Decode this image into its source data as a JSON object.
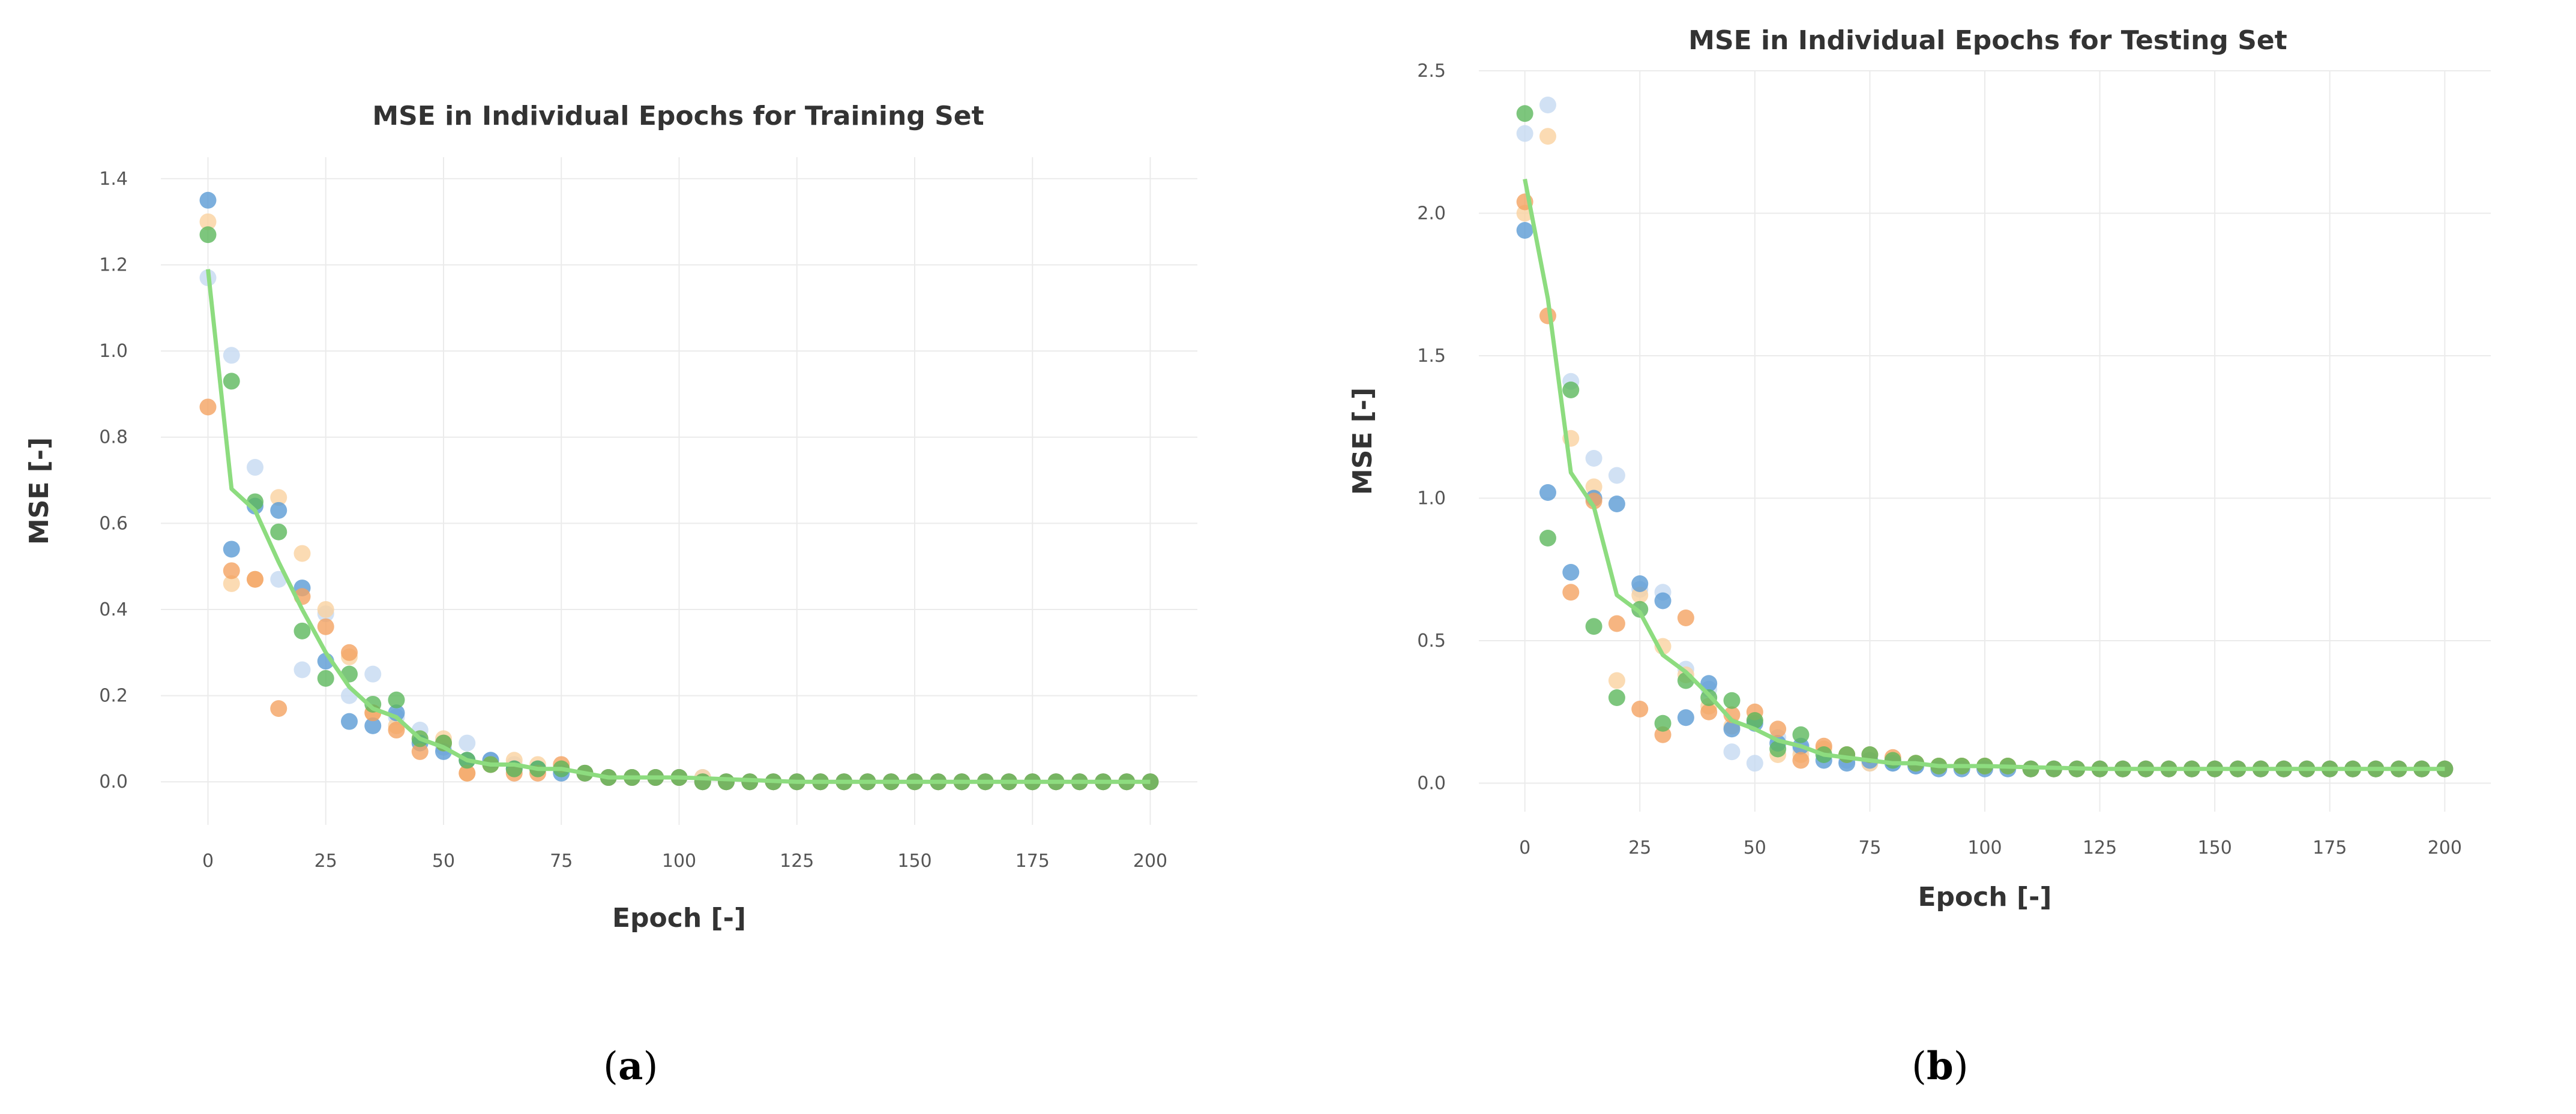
{
  "captions": [
    "a",
    "b"
  ],
  "colors": {
    "blue": "#5b9bd5",
    "light_blue": "#c6d9f1",
    "orange": "#f4a261",
    "light_orange": "#fad2a0",
    "green": "#5cb85c",
    "line": "#8ddc7f"
  },
  "chart_data": [
    {
      "type": "scatter",
      "title": "MSE in Individual Epochs for Training Set",
      "xlabel": "Epoch [-]",
      "ylabel": "MSE [-]",
      "xlim": [
        -10,
        210
      ],
      "ylim": [
        -0.1,
        1.45
      ],
      "xticks": [
        0,
        25,
        50,
        75,
        100,
        125,
        150,
        175,
        200
      ],
      "yticks": [
        0.0,
        0.2,
        0.4,
        0.6,
        0.8,
        1.0,
        1.2,
        1.4
      ],
      "grid": true,
      "x": [
        0,
        5,
        10,
        15,
        20,
        25,
        30,
        35,
        40,
        45,
        50,
        55,
        60,
        65,
        70,
        75,
        80,
        85,
        90,
        95,
        100,
        105,
        110,
        115,
        120,
        125,
        130,
        135,
        140,
        145,
        150,
        155,
        160,
        165,
        170,
        175,
        180,
        185,
        190,
        195,
        200
      ],
      "series": [
        {
          "color_key": "light_blue",
          "values": [
            1.17,
            0.99,
            0.73,
            0.47,
            0.26,
            0.39,
            0.2,
            0.25,
            0.15,
            0.12,
            0.08,
            0.09,
            0.05,
            0.04,
            0.03,
            0.03,
            0.02,
            0.01,
            0.01,
            0.01,
            0.01,
            0.01,
            0.0,
            0.0,
            0.0,
            0.0,
            0.0,
            0.0,
            0.0,
            0.0,
            0.0,
            0.0,
            0.0,
            0.0,
            0.0,
            0.0,
            0.0,
            0.0,
            0.0,
            0.0,
            0.0
          ]
        },
        {
          "color_key": "light_orange",
          "values": [
            1.3,
            0.46,
            0.47,
            0.66,
            0.53,
            0.4,
            0.29,
            0.16,
            0.13,
            0.1,
            0.1,
            0.02,
            0.04,
            0.05,
            0.04,
            0.03,
            0.02,
            0.01,
            0.01,
            0.01,
            0.01,
            0.01,
            0.0,
            0.0,
            0.0,
            0.0,
            0.0,
            0.0,
            0.0,
            0.0,
            0.0,
            0.0,
            0.0,
            0.0,
            0.0,
            0.0,
            0.0,
            0.0,
            0.0,
            0.0,
            0.0
          ]
        },
        {
          "color_key": "blue",
          "values": [
            1.35,
            0.54,
            0.64,
            0.63,
            0.45,
            0.28,
            0.14,
            0.13,
            0.16,
            0.09,
            0.07,
            0.05,
            0.05,
            0.03,
            0.03,
            0.02,
            0.02,
            0.01,
            0.01,
            0.01,
            0.01,
            0.0,
            0.0,
            0.0,
            0.0,
            0.0,
            0.0,
            0.0,
            0.0,
            0.0,
            0.0,
            0.0,
            0.0,
            0.0,
            0.0,
            0.0,
            0.0,
            0.0,
            0.0,
            0.0,
            0.0
          ]
        },
        {
          "color_key": "orange",
          "values": [
            0.87,
            0.49,
            0.47,
            0.17,
            0.43,
            0.36,
            0.3,
            0.16,
            0.12,
            0.07,
            0.09,
            0.02,
            0.04,
            0.02,
            0.02,
            0.04,
            0.02,
            0.01,
            0.01,
            0.01,
            0.01,
            0.0,
            0.0,
            0.0,
            0.0,
            0.0,
            0.0,
            0.0,
            0.0,
            0.0,
            0.0,
            0.0,
            0.0,
            0.0,
            0.0,
            0.0,
            0.0,
            0.0,
            0.0,
            0.0,
            0.0
          ]
        },
        {
          "color_key": "green",
          "values": [
            1.27,
            0.93,
            0.65,
            0.58,
            0.35,
            0.24,
            0.25,
            0.18,
            0.19,
            0.1,
            0.09,
            0.05,
            0.04,
            0.03,
            0.03,
            0.03,
            0.02,
            0.01,
            0.01,
            0.01,
            0.01,
            0.0,
            0.0,
            0.0,
            0.0,
            0.0,
            0.0,
            0.0,
            0.0,
            0.0,
            0.0,
            0.0,
            0.0,
            0.0,
            0.0,
            0.0,
            0.0,
            0.0,
            0.0,
            0.0,
            0.0
          ]
        }
      ],
      "line": {
        "color_key": "line",
        "x": [
          0,
          5,
          10,
          15,
          20,
          25,
          30,
          35,
          40,
          45,
          50,
          55,
          60,
          65,
          70,
          75,
          80,
          85,
          90,
          95,
          100,
          125,
          150,
          175,
          200
        ],
        "values": [
          1.19,
          0.68,
          0.63,
          0.51,
          0.4,
          0.3,
          0.22,
          0.17,
          0.15,
          0.1,
          0.08,
          0.05,
          0.04,
          0.04,
          0.03,
          0.03,
          0.02,
          0.01,
          0.01,
          0.01,
          0.01,
          0.0,
          0.0,
          0.0,
          0.0
        ]
      }
    },
    {
      "type": "scatter",
      "title": "MSE in Individual Epochs for Testing Set",
      "xlabel": "Epoch [-]",
      "ylabel": "MSE [-]",
      "xlim": [
        -10,
        210
      ],
      "ylim": [
        -0.1,
        2.5
      ],
      "xticks": [
        0,
        25,
        50,
        75,
        100,
        125,
        150,
        175,
        200
      ],
      "yticks": [
        0.0,
        0.5,
        1.0,
        1.5,
        2.0,
        2.5
      ],
      "grid": true,
      "x": [
        0,
        5,
        10,
        15,
        20,
        25,
        30,
        35,
        40,
        45,
        50,
        55,
        60,
        65,
        70,
        75,
        80,
        85,
        90,
        95,
        100,
        105,
        110,
        115,
        120,
        125,
        130,
        135,
        140,
        145,
        150,
        155,
        160,
        165,
        170,
        175,
        180,
        185,
        190,
        195,
        200
      ],
      "series": [
        {
          "color_key": "light_blue",
          "values": [
            2.28,
            2.38,
            1.41,
            1.14,
            1.08,
            0.68,
            0.67,
            0.4,
            0.33,
            0.11,
            0.07,
            0.16,
            0.12,
            0.1,
            0.08,
            0.07,
            0.07,
            0.06,
            0.06,
            0.06,
            0.06,
            0.06,
            0.05,
            0.05,
            0.05,
            0.05,
            0.05,
            0.05,
            0.05,
            0.05,
            0.05,
            0.05,
            0.05,
            0.05,
            0.05,
            0.05,
            0.05,
            0.05,
            0.05,
            0.05,
            0.05
          ]
        },
        {
          "color_key": "light_orange",
          "values": [
            2.0,
            2.27,
            1.21,
            1.04,
            0.36,
            0.66,
            0.48,
            0.38,
            0.27,
            0.2,
            0.22,
            0.1,
            0.1,
            0.12,
            0.1,
            0.07,
            0.08,
            0.07,
            0.06,
            0.06,
            0.06,
            0.06,
            0.05,
            0.05,
            0.05,
            0.05,
            0.05,
            0.05,
            0.05,
            0.05,
            0.05,
            0.05,
            0.05,
            0.05,
            0.05,
            0.05,
            0.05,
            0.05,
            0.05,
            0.05,
            0.05
          ]
        },
        {
          "color_key": "blue",
          "values": [
            1.94,
            1.02,
            0.74,
            1.0,
            0.98,
            0.7,
            0.64,
            0.23,
            0.35,
            0.19,
            0.21,
            0.14,
            0.13,
            0.08,
            0.07,
            0.08,
            0.07,
            0.06,
            0.05,
            0.05,
            0.05,
            0.05,
            0.05,
            0.05,
            0.05,
            0.05,
            0.05,
            0.05,
            0.05,
            0.05,
            0.05,
            0.05,
            0.05,
            0.05,
            0.05,
            0.05,
            0.05,
            0.05,
            0.05,
            0.05,
            0.05
          ]
        },
        {
          "color_key": "orange",
          "values": [
            2.04,
            1.64,
            0.67,
            0.99,
            0.56,
            0.26,
            0.17,
            0.58,
            0.25,
            0.24,
            0.25,
            0.19,
            0.08,
            0.13,
            0.1,
            0.1,
            0.09,
            0.07,
            0.06,
            0.06,
            0.06,
            0.06,
            0.05,
            0.05,
            0.05,
            0.05,
            0.05,
            0.05,
            0.05,
            0.05,
            0.05,
            0.05,
            0.05,
            0.05,
            0.05,
            0.05,
            0.05,
            0.05,
            0.05,
            0.05,
            0.05
          ]
        },
        {
          "color_key": "green",
          "values": [
            2.35,
            0.86,
            1.38,
            0.55,
            0.3,
            0.61,
            0.21,
            0.36,
            0.3,
            0.29,
            0.22,
            0.12,
            0.17,
            0.1,
            0.1,
            0.1,
            0.08,
            0.07,
            0.06,
            0.06,
            0.06,
            0.06,
            0.05,
            0.05,
            0.05,
            0.05,
            0.05,
            0.05,
            0.05,
            0.05,
            0.05,
            0.05,
            0.05,
            0.05,
            0.05,
            0.05,
            0.05,
            0.05,
            0.05,
            0.05,
            0.05
          ]
        }
      ],
      "line": {
        "color_key": "line",
        "x": [
          0,
          5,
          10,
          15,
          20,
          25,
          30,
          35,
          40,
          45,
          50,
          55,
          60,
          65,
          70,
          75,
          80,
          85,
          90,
          95,
          100,
          125,
          150,
          175,
          200
        ],
        "values": [
          2.12,
          1.7,
          1.09,
          0.97,
          0.66,
          0.6,
          0.45,
          0.39,
          0.31,
          0.22,
          0.19,
          0.15,
          0.13,
          0.1,
          0.09,
          0.08,
          0.07,
          0.07,
          0.06,
          0.06,
          0.06,
          0.05,
          0.05,
          0.05,
          0.05
        ]
      }
    }
  ]
}
